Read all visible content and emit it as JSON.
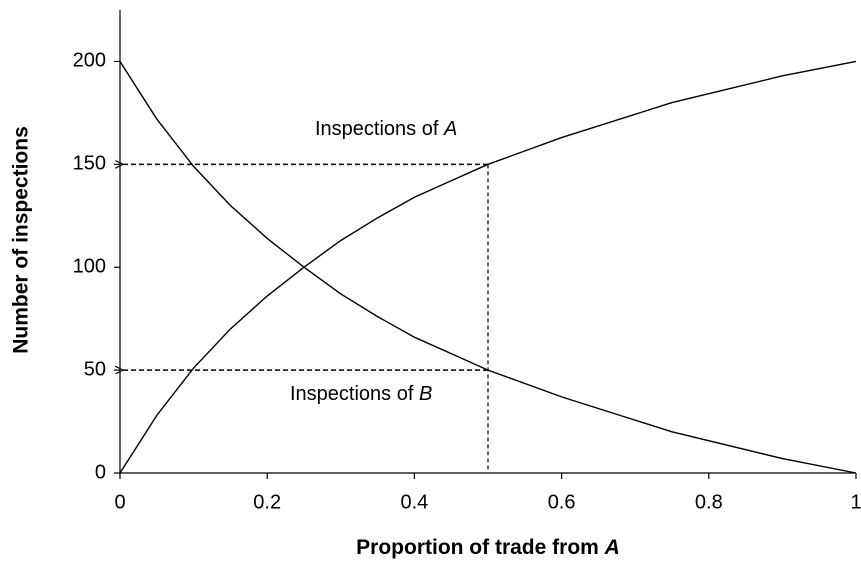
{
  "chart_data": {
    "type": "line",
    "xlabel_text": "Proportion of trade from ",
    "xlabel_italic": "A",
    "ylabel": "Number of inspections",
    "x": [
      0,
      0.05,
      0.1,
      0.15,
      0.2,
      0.25,
      0.3,
      0.35,
      0.4,
      0.45,
      0.5,
      0.6,
      0.75,
      0.9,
      1
    ],
    "series": [
      {
        "label_text": "Inspections of ",
        "label_italic": "A",
        "color": "#000000",
        "values": [
          0,
          28,
          51,
          70,
          86,
          100,
          113,
          124,
          134,
          142,
          150,
          163,
          180,
          193,
          200
        ]
      },
      {
        "label_text": "Inspections of ",
        "label_italic": "B",
        "color": "#000000",
        "values": [
          200,
          172,
          149,
          130,
          114,
          100,
          87,
          76,
          66,
          58,
          50,
          37,
          20,
          7,
          0
        ]
      }
    ],
    "guides": {
      "x": 0.5,
      "y": [
        150,
        50
      ]
    },
    "xlim": [
      0,
      1
    ],
    "xticks": [
      0,
      0.2,
      0.4,
      0.6,
      0.8,
      1
    ],
    "ylim": [
      0,
      225
    ],
    "yticks": [
      0,
      50,
      100,
      150,
      200
    ],
    "grid": false
  }
}
